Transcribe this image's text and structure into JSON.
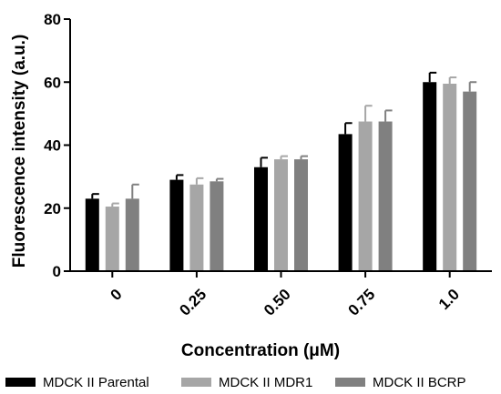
{
  "chart_data": {
    "type": "bar",
    "categories": [
      "0",
      "0.25",
      "0.50",
      "0.75",
      "1.0"
    ],
    "series": [
      {
        "name": "MDCK II Parental",
        "color": "#000000",
        "values": [
          23.0,
          29.0,
          33.0,
          43.5,
          60.0
        ],
        "errors": [
          1.5,
          1.5,
          3.0,
          3.5,
          3.0
        ]
      },
      {
        "name": "MDCK II MDR1",
        "color": "#a6a6a6",
        "values": [
          20.5,
          27.5,
          35.5,
          47.5,
          59.5
        ],
        "errors": [
          1.0,
          2.0,
          1.0,
          5.0,
          2.0
        ]
      },
      {
        "name": "MDCK II BCRP",
        "color": "#808080",
        "values": [
          23.0,
          28.5,
          35.5,
          47.5,
          57.0
        ],
        "errors": [
          4.5,
          0.8,
          1.0,
          3.5,
          3.0
        ]
      }
    ],
    "xlabel": "Concentration (μM)",
    "ylabel": "Fluorescence intensity (a.u.)",
    "ylim": [
      0,
      80
    ],
    "yticks": [
      0,
      20,
      40,
      60,
      80
    ],
    "legend_position": "bottom",
    "grid": false
  }
}
